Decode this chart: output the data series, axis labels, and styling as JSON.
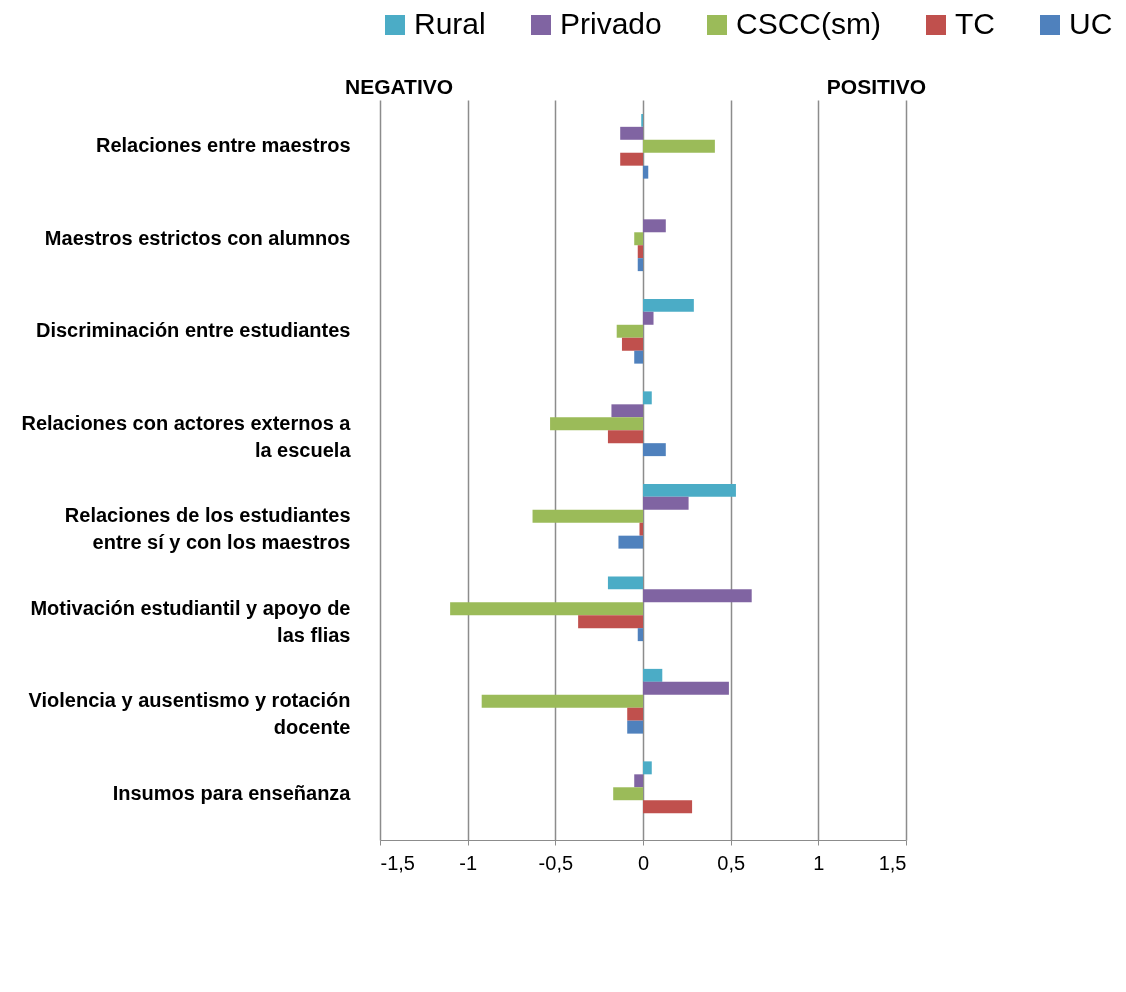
{
  "chart_data": {
    "type": "bar",
    "orientation": "horizontal",
    "categories": [
      "Relaciones entre maestros",
      "Maestros estrictos con alumnos",
      "Discriminación entre estudiantes",
      "Relaciones con actores externos a la escuela",
      "Relaciones de los estudiantes entre sí y con los maestros",
      "Motivación estudiantil y apoyo de las flias",
      "Violencia y ausentismo y rotación docente",
      "Insumos para enseñanza"
    ],
    "series": [
      {
        "name": "Rural",
        "color": "#4bacc6",
        "values": [
          -0.01,
          0,
          0.29,
          0.05,
          0.53,
          -0.2,
          0.11,
          0.05
        ]
      },
      {
        "name": "Privado",
        "color": "#8064a2",
        "values": [
          -0.13,
          0.13,
          0.06,
          -0.18,
          0.26,
          0.62,
          0.49,
          -0.05
        ]
      },
      {
        "name": "CSCC(sm)",
        "color": "#9bbb59",
        "values": [
          0.41,
          -0.05,
          -0.15,
          -0.53,
          -0.63,
          -1.1,
          -0.92,
          -0.17
        ]
      },
      {
        "name": "TC",
        "color": "#c0504d",
        "values": [
          -0.13,
          -0.03,
          -0.12,
          -0.2,
          -0.02,
          -0.37,
          -0.09,
          0.28
        ]
      },
      {
        "name": "UC",
        "color": "#4f81bd",
        "values": [
          0.03,
          -0.03,
          -0.05,
          0.13,
          -0.14,
          -0.03,
          -0.09,
          0
        ]
      }
    ],
    "xlim": [
      -1.5,
      1.5
    ],
    "xticks": [
      {
        "value": -1.5,
        "label": "-1,5"
      },
      -1,
      {
        "value": -0.5,
        "label": "-0,5"
      },
      0,
      {
        "value": 0.5,
        "label": "0,5"
      },
      1,
      {
        "value": 1.5,
        "label": "1,5"
      }
    ],
    "annotations": [
      "NEGATIVO",
      "POSITIVO"
    ],
    "grid": "x",
    "legend": "top"
  }
}
